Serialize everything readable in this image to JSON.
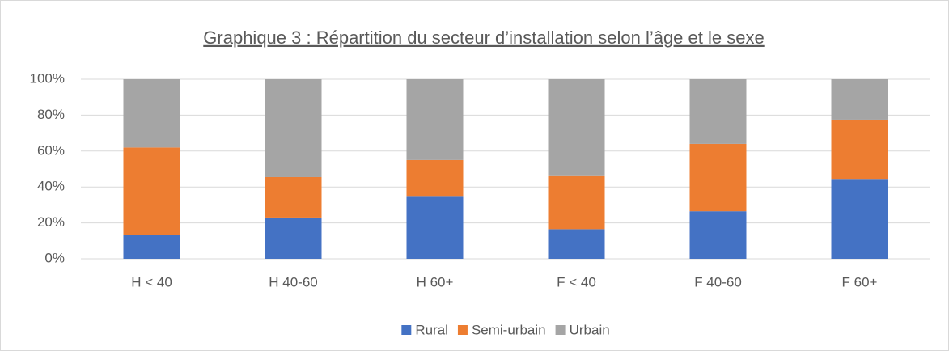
{
  "chart_data": {
    "type": "stacked_bar",
    "title": "Graphique 3 : Répartition du secteur d’installation selon l’âge et le sexe",
    "categories": [
      "H < 40",
      "H 40-60",
      "H 60+",
      "F < 40",
      "F 40-60",
      "F 60+"
    ],
    "series": [
      {
        "name": "Rural",
        "color": "#4472c4",
        "values": [
          13.5,
          23,
          35,
          16.5,
          26.5,
          44.5
        ]
      },
      {
        "name": "Semi-urbain",
        "color": "#ed7d31",
        "values": [
          48.5,
          22.5,
          20,
          30,
          37.5,
          33
        ]
      },
      {
        "name": "Urbain",
        "color": "#a5a5a5",
        "values": [
          38,
          54.5,
          45,
          53.5,
          36,
          22.5
        ]
      }
    ],
    "ylim": [
      0,
      100
    ],
    "yticks": [
      {
        "value": 0,
        "label": "0%"
      },
      {
        "value": 20,
        "label": "20%"
      },
      {
        "value": 40,
        "label": "40%"
      },
      {
        "value": 60,
        "label": "60%"
      },
      {
        "value": 80,
        "label": "80%"
      },
      {
        "value": 100,
        "label": "100%"
      }
    ],
    "grid": true,
    "legend": "bottom"
  }
}
